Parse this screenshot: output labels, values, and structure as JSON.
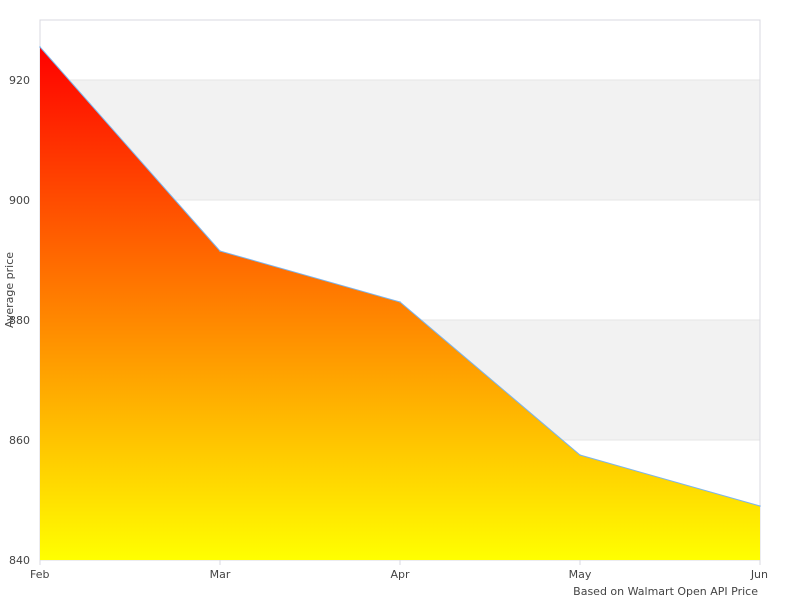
{
  "chart_data": {
    "type": "area",
    "categories": [
      "Feb",
      "Mar",
      "Apr",
      "May",
      "Jun"
    ],
    "series": [
      {
        "values": [
          925.5,
          891.5,
          883,
          857.5,
          849
        ]
      }
    ],
    "ylabel": "Average price",
    "xlabel": "",
    "ylim": [
      840,
      930
    ],
    "yticks": [
      840,
      860,
      880,
      900,
      920
    ],
    "credit": "Based on Walmart Open API Price",
    "grid": true,
    "alternate_bands": true,
    "colors": {
      "gradient_top": "#ff0000",
      "gradient_bottom": "#ffff00",
      "line": "#7cb5ec",
      "band": "#f2f2f2",
      "grid": "#e6e6e6",
      "frame": "#d8d8e0"
    }
  }
}
